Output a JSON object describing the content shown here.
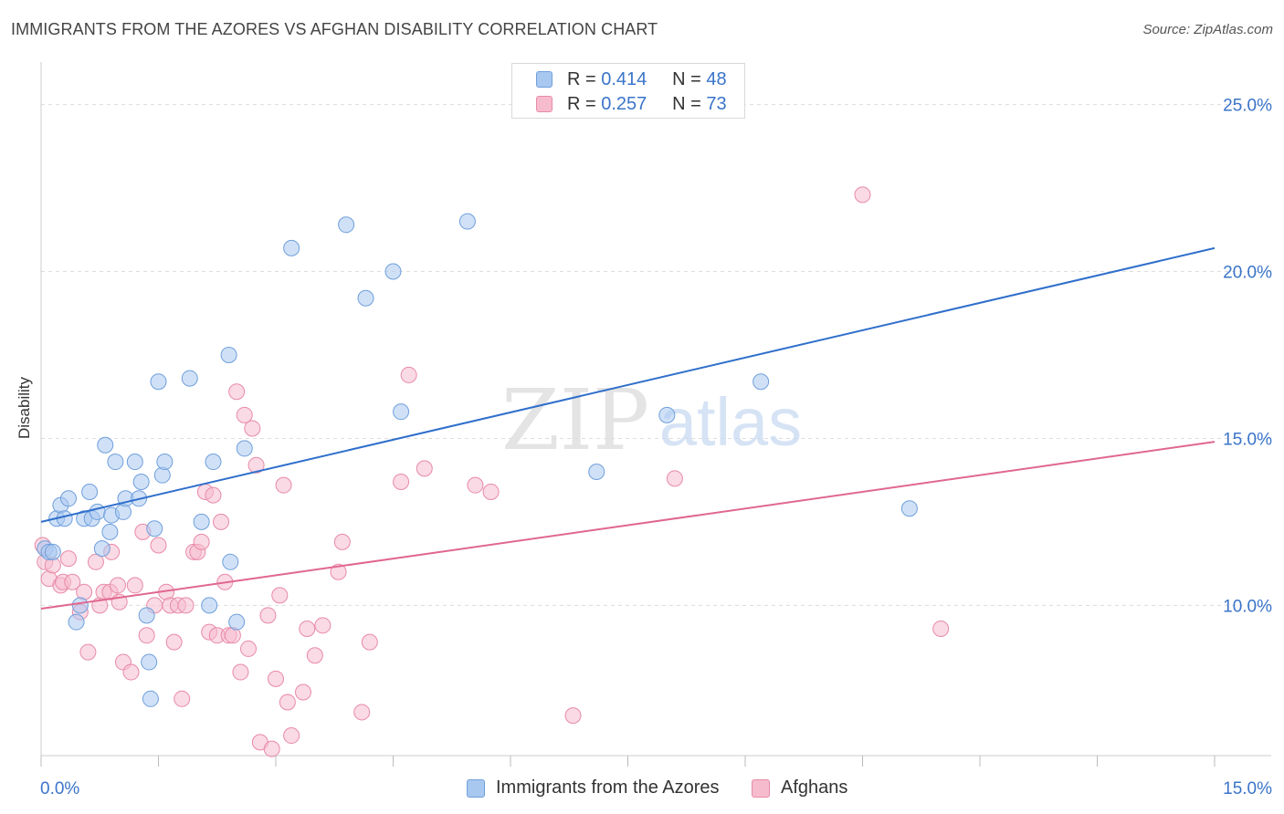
{
  "title": "IMMIGRANTS FROM THE AZORES VS AFGHAN DISABILITY CORRELATION CHART",
  "source": "Source: ZipAtlas.com",
  "watermark": {
    "zip": "ZIP",
    "atlas": "atlas"
  },
  "legend_top": [
    {
      "r_label": "R =",
      "r_value": "0.414",
      "n_label": "N =",
      "n_value": "48"
    },
    {
      "r_label": "R =",
      "r_value": "0.257",
      "n_label": "N =",
      "n_value": "73"
    }
  ],
  "legend_bottom": [
    {
      "label": "Immigrants from the Azores"
    },
    {
      "label": "Afghans"
    }
  ],
  "colors": {
    "blue_fill": "#a9c8f0",
    "blue_stroke": "#6f9fdc",
    "blue_line": "#2f6fcc",
    "pink_fill": "#f6bccd",
    "pink_stroke": "#e88aa8",
    "pink_line": "#e0678f",
    "tick_label": "#3a74c9",
    "grid": "#dddddd"
  },
  "chart_data": {
    "type": "scatter",
    "title": "IMMIGRANTS FROM THE AZORES VS AFGHAN DISABILITY CORRELATION CHART",
    "xlabel": "",
    "ylabel": "Disability",
    "xlim": [
      0,
      15
    ],
    "ylim": [
      5.5,
      26
    ],
    "x_tick_labels": [
      {
        "value": 0,
        "label": "0.0%"
      },
      {
        "value": 15,
        "label": "15.0%"
      }
    ],
    "y_tick_labels": [
      {
        "value": 10,
        "label": "10.0%"
      },
      {
        "value": 15,
        "label": "15.0%"
      },
      {
        "value": 20,
        "label": "20.0%"
      },
      {
        "value": 25,
        "label": "25.0%"
      }
    ],
    "series": [
      {
        "name": "Immigrants from the Azores",
        "color": "blue",
        "r": 0.414,
        "n": 48,
        "trend": {
          "x": [
            0,
            15
          ],
          "y": [
            12.5,
            20.7
          ]
        },
        "points": [
          [
            0.05,
            11.7
          ],
          [
            0.1,
            11.6
          ],
          [
            0.2,
            12.6
          ],
          [
            0.25,
            13.0
          ],
          [
            0.3,
            12.6
          ],
          [
            0.35,
            13.2
          ],
          [
            0.45,
            9.5
          ],
          [
            0.5,
            10.0
          ],
          [
            0.55,
            12.6
          ],
          [
            0.62,
            13.4
          ],
          [
            0.65,
            12.6
          ],
          [
            0.72,
            12.8
          ],
          [
            0.78,
            11.7
          ],
          [
            0.82,
            14.8
          ],
          [
            0.88,
            12.2
          ],
          [
            0.9,
            12.7
          ],
          [
            0.95,
            14.3
          ],
          [
            1.05,
            12.8
          ],
          [
            1.08,
            13.2
          ],
          [
            1.2,
            14.3
          ],
          [
            1.25,
            13.2
          ],
          [
            1.28,
            13.7
          ],
          [
            1.35,
            9.7
          ],
          [
            1.38,
            8.3
          ],
          [
            1.4,
            7.2
          ],
          [
            1.45,
            12.3
          ],
          [
            1.5,
            16.7
          ],
          [
            1.55,
            13.9
          ],
          [
            1.58,
            14.3
          ],
          [
            1.9,
            16.8
          ],
          [
            2.05,
            12.5
          ],
          [
            2.15,
            10.0
          ],
          [
            2.2,
            14.3
          ],
          [
            2.4,
            17.5
          ],
          [
            2.42,
            11.3
          ],
          [
            2.5,
            9.5
          ],
          [
            2.6,
            14.7
          ],
          [
            3.2,
            20.7
          ],
          [
            3.9,
            21.4
          ],
          [
            4.15,
            19.2
          ],
          [
            4.5,
            20.0
          ],
          [
            4.6,
            15.8
          ],
          [
            5.45,
            21.5
          ],
          [
            7.1,
            14.0
          ],
          [
            8.0,
            15.7
          ],
          [
            9.2,
            16.7
          ],
          [
            11.1,
            12.9
          ],
          [
            0.15,
            11.6
          ]
        ]
      },
      {
        "name": "Afghans",
        "color": "pink",
        "r": 0.257,
        "n": 73,
        "trend": {
          "x": [
            0,
            15
          ],
          "y": [
            9.9,
            14.9
          ]
        },
        "points": [
          [
            0.02,
            11.8
          ],
          [
            0.05,
            11.3
          ],
          [
            0.1,
            10.8
          ],
          [
            0.15,
            11.2
          ],
          [
            0.25,
            10.6
          ],
          [
            0.28,
            10.7
          ],
          [
            0.35,
            11.4
          ],
          [
            0.4,
            10.7
          ],
          [
            0.5,
            9.8
          ],
          [
            0.55,
            10.4
          ],
          [
            0.6,
            8.6
          ],
          [
            0.7,
            11.3
          ],
          [
            0.75,
            10.0
          ],
          [
            0.8,
            10.4
          ],
          [
            0.88,
            10.4
          ],
          [
            0.9,
            11.6
          ],
          [
            0.98,
            10.6
          ],
          [
            1.0,
            10.1
          ],
          [
            1.05,
            8.3
          ],
          [
            1.15,
            8.0
          ],
          [
            1.2,
            10.6
          ],
          [
            1.3,
            12.2
          ],
          [
            1.35,
            9.1
          ],
          [
            1.45,
            10.0
          ],
          [
            1.5,
            11.8
          ],
          [
            1.6,
            10.4
          ],
          [
            1.65,
            10.0
          ],
          [
            1.7,
            8.9
          ],
          [
            1.75,
            10.0
          ],
          [
            1.8,
            7.2
          ],
          [
            1.85,
            10.0
          ],
          [
            1.95,
            11.6
          ],
          [
            2.0,
            11.6
          ],
          [
            2.05,
            11.9
          ],
          [
            2.1,
            13.4
          ],
          [
            2.15,
            9.2
          ],
          [
            2.2,
            13.3
          ],
          [
            2.25,
            9.1
          ],
          [
            2.3,
            12.5
          ],
          [
            2.35,
            10.7
          ],
          [
            2.4,
            9.1
          ],
          [
            2.45,
            9.1
          ],
          [
            2.5,
            16.4
          ],
          [
            2.55,
            8.0
          ],
          [
            2.6,
            15.7
          ],
          [
            2.65,
            8.7
          ],
          [
            2.7,
            15.3
          ],
          [
            2.75,
            14.2
          ],
          [
            2.8,
            5.9
          ],
          [
            2.9,
            9.7
          ],
          [
            2.95,
            5.7
          ],
          [
            3.0,
            7.8
          ],
          [
            3.05,
            10.3
          ],
          [
            3.1,
            13.6
          ],
          [
            3.15,
            7.1
          ],
          [
            3.2,
            6.1
          ],
          [
            3.35,
            7.4
          ],
          [
            3.4,
            9.3
          ],
          [
            3.5,
            8.5
          ],
          [
            3.6,
            9.4
          ],
          [
            3.8,
            11.0
          ],
          [
            3.85,
            11.9
          ],
          [
            4.1,
            6.8
          ],
          [
            4.2,
            8.9
          ],
          [
            4.6,
            13.7
          ],
          [
            4.7,
            16.9
          ],
          [
            4.9,
            14.1
          ],
          [
            5.55,
            13.6
          ],
          [
            5.75,
            13.4
          ],
          [
            6.8,
            6.7
          ],
          [
            8.1,
            13.8
          ],
          [
            10.5,
            22.3
          ],
          [
            11.5,
            9.3
          ]
        ]
      }
    ]
  }
}
